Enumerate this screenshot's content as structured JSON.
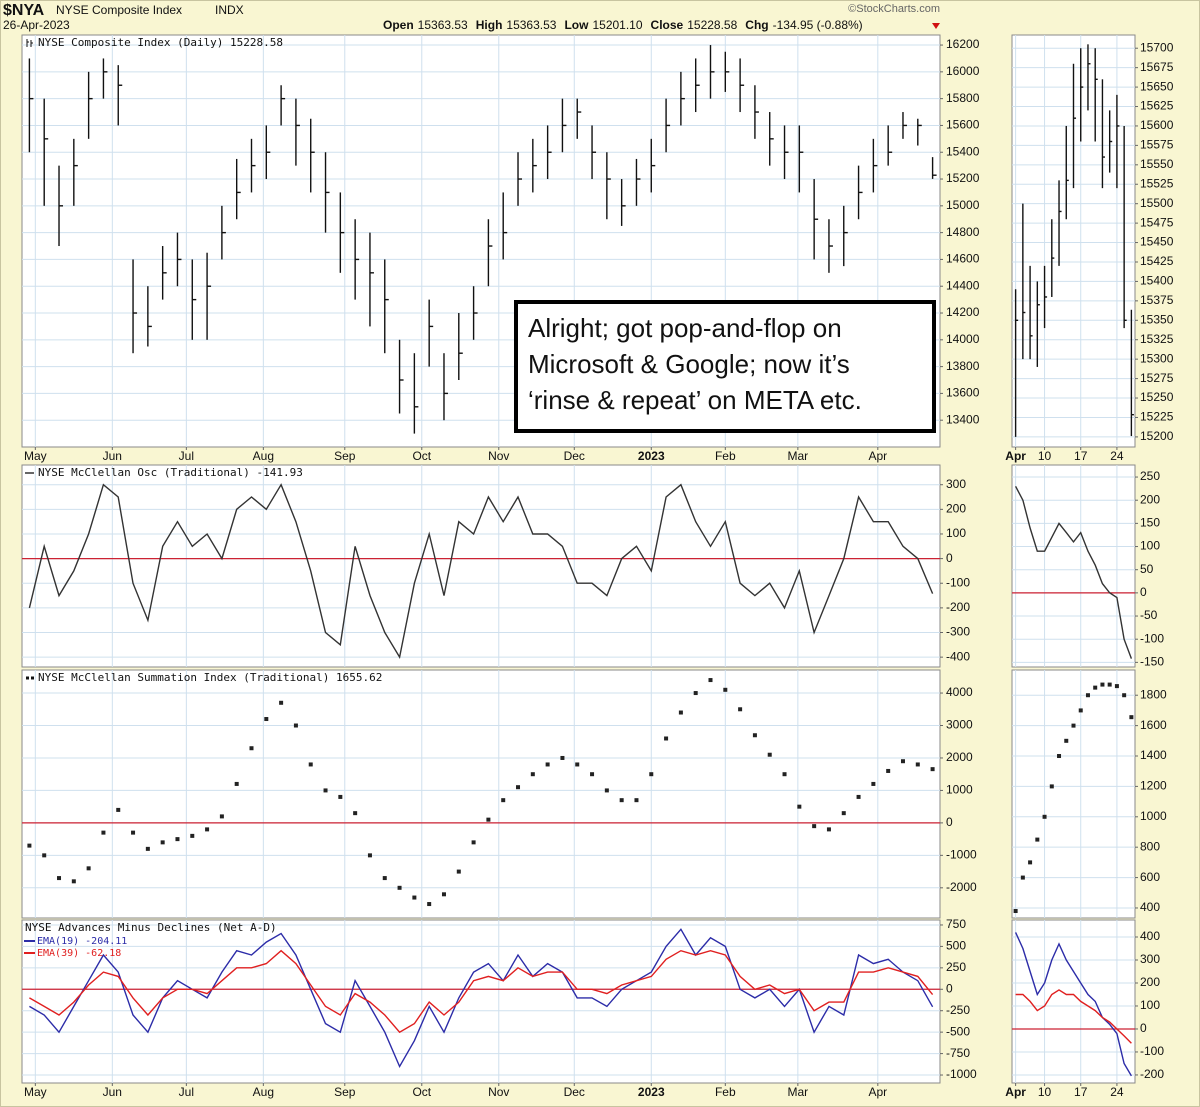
{
  "header": {
    "symbol": "$NYA",
    "name": "NYSE Composite Index",
    "exchange": "INDX",
    "date": "26-Apr-2023",
    "source": "©StockCharts.com",
    "quote": [
      {
        "label": "Open",
        "value": "15363.53"
      },
      {
        "label": "High",
        "value": "15363.53"
      },
      {
        "label": "Low",
        "value": "15201.10"
      },
      {
        "label": "Close",
        "value": "15228.58"
      },
      {
        "label": "Chg",
        "value": "-134.95 (-0.88%)"
      }
    ]
  },
  "chart_data": [
    {
      "type": "ohlc",
      "title": "NYSE Composite Index (Daily) 15228.58",
      "color": "#111111",
      "high": [
        16100,
        15800,
        15300,
        15500,
        16000,
        16100,
        16050,
        14600,
        14400,
        14700,
        14800,
        14600,
        14650,
        15000,
        15350,
        15500,
        15600,
        15900,
        15800,
        15650,
        15400,
        15100,
        14900,
        14800,
        14600,
        14000,
        13900,
        14300,
        13900,
        14200,
        14400,
        14900,
        15100,
        15400,
        15500,
        15600,
        15800,
        15800,
        15600,
        15400,
        15200,
        15350,
        15500,
        15800,
        16000,
        16100,
        16200,
        16150,
        16100,
        15900,
        15700,
        15600,
        15600,
        15200,
        14900,
        15000,
        15300,
        15500,
        15600,
        15700,
        15650,
        15363.53
      ],
      "low": [
        15400,
        15000,
        14700,
        15000,
        15500,
        15800,
        15600,
        13900,
        13950,
        14300,
        14400,
        14000,
        14000,
        14600,
        14900,
        15100,
        15200,
        15600,
        15300,
        15100,
        14800,
        14500,
        14300,
        14100,
        13900,
        13450,
        13300,
        13800,
        13400,
        13700,
        14000,
        14400,
        14600,
        15000,
        15100,
        15200,
        15400,
        15500,
        15200,
        14900,
        14850,
        15000,
        15100,
        15400,
        15600,
        15700,
        15800,
        15850,
        15700,
        15500,
        15300,
        15200,
        15100,
        14600,
        14500,
        14550,
        14900,
        15100,
        15300,
        15500,
        15450,
        15201.1
      ],
      "close": [
        15800,
        15500,
        15000,
        15300,
        15800,
        16000,
        15900,
        14200,
        14100,
        14500,
        14600,
        14300,
        14400,
        14800,
        15100,
        15300,
        15400,
        15800,
        15600,
        15400,
        15100,
        14800,
        14600,
        14500,
        14300,
        13700,
        13500,
        14100,
        13600,
        13900,
        14200,
        14700,
        14800,
        15200,
        15300,
        15400,
        15600,
        15700,
        15400,
        15200,
        15000,
        15200,
        15300,
        15600,
        15800,
        15900,
        16000,
        16000,
        15900,
        15700,
        15500,
        15400,
        15400,
        14900,
        14700,
        14800,
        15100,
        15300,
        15400,
        15600,
        15600,
        15228.58
      ],
      "xlim": [
        -0.5,
        61.5
      ],
      "xticks": [
        {
          "value": 0.4,
          "label": "May"
        },
        {
          "value": 5.6,
          "label": "Jun"
        },
        {
          "value": 10.6,
          "label": "Jul"
        },
        {
          "value": 15.8,
          "label": "Aug"
        },
        {
          "value": 21.3,
          "label": "Sep"
        },
        {
          "value": 26.5,
          "label": "Oct"
        },
        {
          "value": 31.7,
          "label": "Nov"
        },
        {
          "value": 36.8,
          "label": "Dec"
        },
        {
          "value": 42.0,
          "label": "2023",
          "bold": true
        },
        {
          "value": 47.0,
          "label": "Feb"
        },
        {
          "value": 51.9,
          "label": "Mar"
        },
        {
          "value": 57.3,
          "label": "Apr"
        }
      ],
      "ylim": [
        13200,
        16275
      ],
      "yticks": [
        16200,
        16000,
        15800,
        15600,
        15400,
        15200,
        15000,
        14800,
        14600,
        14400,
        14200,
        14000,
        13800,
        13600,
        13400
      ],
      "grid": true,
      "annotation": [
        "Alright; got pop-and-flop on",
        "Microsoft & Google; now it’s",
        "‘rinse & repeat’ on META etc."
      ]
    },
    {
      "type": "ohlc",
      "color": "#111111",
      "high": [
        15390,
        15500,
        15420,
        15400,
        15420,
        15480,
        15530,
        15600,
        15680,
        15700,
        15705,
        15700,
        15660,
        15620,
        15640,
        15600,
        15363.53
      ],
      "low": [
        15200,
        15300,
        15300,
        15290,
        15340,
        15380,
        15420,
        15480,
        15520,
        15580,
        15620,
        15580,
        15520,
        15540,
        15520,
        15340,
        15201.1
      ],
      "close": [
        15350,
        15360,
        15330,
        15370,
        15380,
        15430,
        15490,
        15530,
        15610,
        15650,
        15680,
        15660,
        15560,
        15580,
        15600,
        15350,
        15228.58
      ],
      "xlim": [
        -0.5,
        16.5
      ],
      "xticks": [
        {
          "value": 0,
          "label": "Apr",
          "bold": true
        },
        {
          "value": 4,
          "label": "10"
        },
        {
          "value": 9,
          "label": "17"
        },
        {
          "value": 14,
          "label": "24"
        }
      ],
      "ylim": [
        15187,
        15717
      ],
      "yticks": [
        15700,
        15675,
        15650,
        15625,
        15600,
        15575,
        15550,
        15525,
        15500,
        15475,
        15450,
        15425,
        15400,
        15375,
        15350,
        15325,
        15300,
        15275,
        15250,
        15225,
        15200
      ],
      "grid": true
    },
    {
      "type": "line",
      "title": "NYSE McClellan Osc (Traditional) -141.93",
      "series": [
        {
          "color": "#333333",
          "values": [
            -200,
            50,
            -150,
            -50,
            100,
            300,
            250,
            -100,
            -250,
            50,
            150,
            50,
            100,
            0,
            200,
            250,
            200,
            300,
            150,
            -50,
            -300,
            -350,
            50,
            -150,
            -300,
            -400,
            -100,
            100,
            -150,
            150,
            100,
            250,
            150,
            250,
            100,
            100,
            50,
            -100,
            -100,
            -150,
            0,
            50,
            -50,
            250,
            300,
            150,
            50,
            150,
            -100,
            -150,
            -100,
            -200,
            -50,
            -300,
            -150,
            0,
            250,
            150,
            150,
            50,
            0,
            -141.93
          ]
        }
      ],
      "hline": 0,
      "hline_color": "#cc2233",
      "xlim": [
        -0.5,
        61.5
      ],
      "xticks": [
        0.4,
        5.6,
        10.6,
        15.8,
        21.3,
        26.5,
        31.7,
        36.8,
        42.0,
        47.0,
        51.9,
        57.3
      ],
      "ylim": [
        -440,
        380
      ],
      "yticks": [
        300,
        200,
        100,
        0,
        -100,
        -200,
        -300,
        -400
      ],
      "grid": true
    },
    {
      "type": "line",
      "series": [
        {
          "color": "#333333",
          "values": [
            230,
            200,
            140,
            90,
            90,
            120,
            150,
            130,
            110,
            130,
            90,
            60,
            20,
            0,
            -10,
            -100,
            -141.93
          ]
        }
      ],
      "hline": 0,
      "hline_color": "#cc2233",
      "xlim": [
        -0.5,
        16.5
      ],
      "xticks": [
        0,
        4,
        9,
        14
      ],
      "ylim": [
        -160,
        276
      ],
      "yticks": [
        250,
        200,
        150,
        100,
        50,
        0,
        -50,
        -100,
        -150
      ],
      "grid": true
    },
    {
      "type": "dot",
      "title": "NYSE McClellan Summation Index (Traditional) 1655.62",
      "series": [
        {
          "color": "#222222",
          "values": [
            -700,
            -1000,
            -1700,
            -1800,
            -1400,
            -300,
            400,
            -300,
            -800,
            -600,
            -500,
            -400,
            -200,
            200,
            1200,
            2300,
            3200,
            3700,
            3000,
            1800,
            1000,
            800,
            300,
            -1000,
            -1700,
            -2000,
            -2300,
            -2500,
            -2200,
            -1500,
            -600,
            100,
            700,
            1100,
            1500,
            1800,
            2000,
            1800,
            1500,
            1000,
            700,
            700,
            1500,
            2600,
            3400,
            4000,
            4400,
            4100,
            3500,
            2700,
            2100,
            1500,
            500,
            -100,
            -200,
            300,
            800,
            1200,
            1600,
            1900,
            1800,
            1655.62
          ]
        }
      ],
      "hline": 0,
      "hline_color": "#cc2233",
      "xlim": [
        -0.5,
        61.5
      ],
      "xticks": [
        0.4,
        5.6,
        10.6,
        15.8,
        21.3,
        26.5,
        31.7,
        36.8,
        42.0,
        47.0,
        51.9,
        57.3
      ],
      "ylim": [
        -2930,
        4710
      ],
      "yticks": [
        4000,
        3000,
        2000,
        1000,
        0,
        -1000,
        -2000
      ],
      "grid": true
    },
    {
      "type": "dot",
      "series": [
        {
          "color": "#222222",
          "values": [
            380,
            600,
            700,
            850,
            1000,
            1200,
            1400,
            1500,
            1600,
            1700,
            1800,
            1850,
            1870,
            1870,
            1860,
            1800,
            1655.62
          ]
        }
      ],
      "xlim": [
        -0.5,
        16.5
      ],
      "xticks": [
        0,
        4,
        9,
        14
      ],
      "ylim": [
        334,
        1966
      ],
      "yticks": [
        1800,
        1600,
        1400,
        1200,
        1000,
        800,
        600,
        400
      ],
      "grid": true
    },
    {
      "type": "line",
      "title": "NYSE Advances Minus Declines (Net A-D)",
      "series": [
        {
          "name": "EMA(19) -204.11",
          "color": "#2c2ca8",
          "values": [
            -200,
            -300,
            -500,
            -200,
            100,
            400,
            200,
            -300,
            -500,
            -100,
            100,
            0,
            -100,
            200,
            450,
            400,
            550,
            650,
            400,
            0,
            -400,
            -500,
            100,
            -200,
            -500,
            -900,
            -600,
            -200,
            -500,
            -100,
            200,
            300,
            100,
            400,
            150,
            300,
            200,
            -100,
            -100,
            -200,
            0,
            100,
            200,
            500,
            700,
            400,
            600,
            500,
            0,
            -100,
            0,
            -200,
            0,
            -500,
            -200,
            -300,
            400,
            300,
            350,
            200,
            100,
            -204.11
          ]
        },
        {
          "name": "EMA(39) -62.18",
          "color": "#e02020",
          "values": [
            -100,
            -200,
            -300,
            -150,
            50,
            200,
            150,
            -100,
            -300,
            -100,
            0,
            0,
            -50,
            100,
            250,
            250,
            300,
            450,
            300,
            50,
            -200,
            -300,
            -50,
            -150,
            -300,
            -500,
            -400,
            -150,
            -300,
            -150,
            100,
            150,
            100,
            250,
            150,
            200,
            200,
            0,
            0,
            -50,
            50,
            100,
            150,
            350,
            450,
            400,
            450,
            400,
            150,
            0,
            50,
            -50,
            0,
            -250,
            -150,
            -150,
            200,
            200,
            250,
            200,
            150,
            -62.18
          ]
        }
      ],
      "hline": 0,
      "hline_color": "#cc2233",
      "xlim": [
        -0.5,
        61.5
      ],
      "xticks": [
        {
          "value": 0.4,
          "label": "May"
        },
        {
          "value": 5.6,
          "label": "Jun"
        },
        {
          "value": 10.6,
          "label": "Jul"
        },
        {
          "value": 15.8,
          "label": "Aug"
        },
        {
          "value": 21.3,
          "label": "Sep"
        },
        {
          "value": 26.5,
          "label": "Oct"
        },
        {
          "value": 31.7,
          "label": "Nov"
        },
        {
          "value": 36.8,
          "label": "Dec"
        },
        {
          "value": 42.0,
          "label": "2023",
          "bold": true
        },
        {
          "value": 47.0,
          "label": "Feb"
        },
        {
          "value": 51.9,
          "label": "Mar"
        },
        {
          "value": 57.3,
          "label": "Apr"
        }
      ],
      "ylim": [
        -1093,
        808
      ],
      "yticks": [
        750,
        500,
        250,
        0,
        -250,
        -500,
        -750,
        -1000
      ],
      "grid": true
    },
    {
      "type": "line",
      "series": [
        {
          "color": "#2c2ca8",
          "values": [
            420,
            350,
            250,
            150,
            200,
            300,
            370,
            300,
            250,
            200,
            150,
            120,
            50,
            20,
            -20,
            -150,
            -204.11
          ]
        },
        {
          "color": "#e02020",
          "values": [
            150,
            150,
            120,
            80,
            100,
            150,
            170,
            150,
            150,
            120,
            100,
            80,
            50,
            30,
            0,
            -30,
            -62.18
          ]
        }
      ],
      "hline": 0,
      "hline_color": "#cc2233",
      "xlim": [
        -0.5,
        16.5
      ],
      "xticks": [
        {
          "value": 0,
          "label": "Apr",
          "bold": true
        },
        {
          "value": 4,
          "label": "10"
        },
        {
          "value": 9,
          "label": "17"
        },
        {
          "value": 14,
          "label": "24"
        }
      ],
      "ylim": [
        -235,
        474
      ],
      "yticks": [
        400,
        300,
        200,
        100,
        0,
        -100,
        -200
      ],
      "grid": true
    }
  ]
}
